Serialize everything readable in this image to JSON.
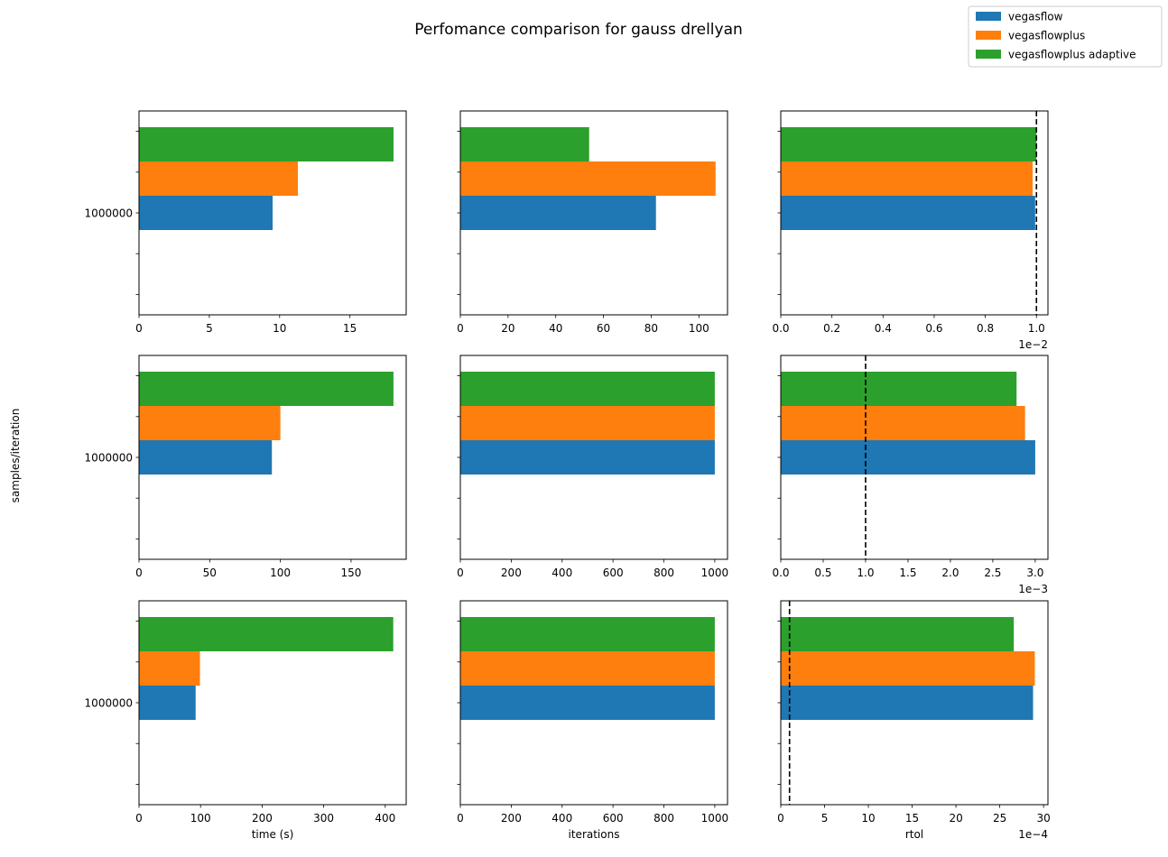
{
  "chart_data": {
    "type": "bar",
    "orientation": "horizontal",
    "title": "Perfomance comparison for gauss drellyan",
    "ylabel": "samples/iteration",
    "legend": {
      "placement": "top-right",
      "entries": [
        {
          "name": "vegasflow",
          "color": "#1f77b4"
        },
        {
          "name": "vegasflowplus",
          "color": "#ff7f0e"
        },
        {
          "name": "vegasflowplus adaptive",
          "color": "#2ca02c"
        }
      ]
    },
    "category_label": "1000000",
    "grid": false,
    "panels": [
      {
        "row": 0,
        "col": 0,
        "xlabel": "",
        "xlim": [
          0,
          19.0
        ],
        "xticks": [
          0,
          5,
          10,
          15
        ],
        "tick_labels": [
          "0",
          "5",
          "10",
          "15"
        ],
        "offset_label": "",
        "threshold": null,
        "values": {
          "vegasflow": 9.5,
          "vegasflowplus": 11.3,
          "vegasflowplus adaptive": 18.1
        }
      },
      {
        "row": 0,
        "col": 1,
        "xlabel": "",
        "xlim": [
          0,
          112
        ],
        "xticks": [
          0,
          20,
          40,
          60,
          80,
          100
        ],
        "tick_labels": [
          "0",
          "20",
          "40",
          "60",
          "80",
          "100"
        ],
        "offset_label": "",
        "threshold": null,
        "values": {
          "vegasflow": 82,
          "vegasflowplus": 107,
          "vegasflowplus adaptive": 54
        }
      },
      {
        "row": 0,
        "col": 2,
        "xlabel": "",
        "xlim": [
          0,
          1.045
        ],
        "xticks": [
          0,
          0.2,
          0.4,
          0.6,
          0.8,
          1.0
        ],
        "tick_labels": [
          "0.0",
          "0.2",
          "0.4",
          "0.6",
          "0.8",
          "1.0"
        ],
        "offset_label": "1e−2",
        "threshold": 1.0,
        "values": {
          "vegasflow": 0.995,
          "vegasflowplus": 0.985,
          "vegasflowplus adaptive": 1.0
        }
      },
      {
        "row": 1,
        "col": 0,
        "xlabel": "",
        "xlim": [
          0,
          189
        ],
        "xticks": [
          0,
          50,
          100,
          150
        ],
        "tick_labels": [
          "0",
          "50",
          "100",
          "150"
        ],
        "offset_label": "",
        "threshold": null,
        "values": {
          "vegasflow": 94,
          "vegasflowplus": 100,
          "vegasflowplus adaptive": 180
        }
      },
      {
        "row": 1,
        "col": 1,
        "xlabel": "",
        "xlim": [
          0,
          1050
        ],
        "xticks": [
          0,
          200,
          400,
          600,
          800,
          1000
        ],
        "tick_labels": [
          "0",
          "200",
          "400",
          "600",
          "800",
          "1000"
        ],
        "offset_label": "",
        "threshold": null,
        "values": {
          "vegasflow": 1000,
          "vegasflowplus": 1000,
          "vegasflowplus adaptive": 1000
        }
      },
      {
        "row": 1,
        "col": 2,
        "xlabel": "",
        "xlim": [
          0,
          3.15
        ],
        "xticks": [
          0,
          0.5,
          1.0,
          1.5,
          2.0,
          2.5,
          3.0
        ],
        "tick_labels": [
          "0.0",
          "0.5",
          "1.0",
          "1.5",
          "2.0",
          "2.5",
          "3.0"
        ],
        "offset_label": "1e−3",
        "threshold": 1.0,
        "values": {
          "vegasflow": 3.0,
          "vegasflowplus": 2.88,
          "vegasflowplus adaptive": 2.78
        }
      },
      {
        "row": 2,
        "col": 0,
        "xlabel": "time (s)",
        "xlim": [
          0,
          434
        ],
        "xticks": [
          0,
          100,
          200,
          300,
          400
        ],
        "tick_labels": [
          "0",
          "100",
          "200",
          "300",
          "400"
        ],
        "offset_label": "",
        "threshold": null,
        "values": {
          "vegasflow": 92,
          "vegasflowplus": 99,
          "vegasflowplus adaptive": 413
        }
      },
      {
        "row": 2,
        "col": 1,
        "xlabel": "iterations",
        "xlim": [
          0,
          1050
        ],
        "xticks": [
          0,
          200,
          400,
          600,
          800,
          1000
        ],
        "tick_labels": [
          "0",
          "200",
          "400",
          "600",
          "800",
          "1000"
        ],
        "offset_label": "",
        "threshold": null,
        "values": {
          "vegasflow": 1000,
          "vegasflowplus": 1000,
          "vegasflowplus adaptive": 1000
        }
      },
      {
        "row": 2,
        "col": 2,
        "xlabel": "rtol",
        "xlim": [
          0,
          30.5
        ],
        "xticks": [
          0,
          5,
          10,
          15,
          20,
          25,
          30
        ],
        "tick_labels": [
          "0",
          "5",
          "10",
          "15",
          "20",
          "25",
          "30"
        ],
        "offset_label": "1e−4",
        "threshold": 1.0,
        "values": {
          "vegasflow": 28.8,
          "vegasflowplus": 29.0,
          "vegasflowplus adaptive": 26.6
        }
      }
    ]
  }
}
